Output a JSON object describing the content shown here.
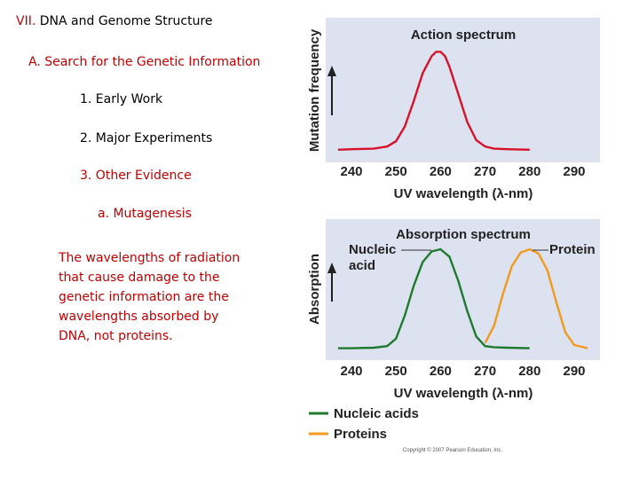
{
  "slide": {
    "heading_num": "VII.",
    "heading_text": "DNA and Genome Structure",
    "section_a": "A. Search for the Genetic Information",
    "item_1": "1. Early Work",
    "item_2": "2. Major Experiments",
    "item_3": "3. Other Evidence",
    "subitem_a": "a. Mutagenesis",
    "paragraph_lines": [
      "The wavelengths of radiation",
      "that cause damage to the",
      "genetic information are the",
      "wavelengths absorbed by",
      "DNA, not proteins."
    ],
    "credit": "Copyright © 2007 Pearson Education, Inc."
  },
  "colors": {
    "red_text": "#c00000",
    "panel_bg": "#dde2f1",
    "action_line": "#d8112b",
    "nucleic_line": "#1f7a2e",
    "protein_line": "#f29a1e"
  },
  "chart_data": [
    {
      "type": "line",
      "title": "Action spectrum",
      "xlabel": "UV wavelength (λ-nm)",
      "ylabel": "Mutation frequency",
      "xlim": [
        235,
        293
      ],
      "ylim": [
        0,
        1.0
      ],
      "xticks": [
        "240",
        "250",
        "260",
        "270",
        "280",
        "290"
      ],
      "grid": false,
      "series": [
        {
          "x": [
            237,
            240,
            245,
            248,
            250,
            252,
            254,
            256,
            258,
            259,
            260,
            261,
            262,
            264,
            266,
            268,
            270,
            272,
            275,
            280
          ],
          "values": [
            0.06,
            0.065,
            0.07,
            0.09,
            0.14,
            0.28,
            0.52,
            0.78,
            0.94,
            0.98,
            0.98,
            0.94,
            0.84,
            0.58,
            0.32,
            0.15,
            0.09,
            0.07,
            0.065,
            0.06
          ]
        }
      ]
    },
    {
      "type": "line",
      "title": "Absorption spectrum",
      "xlabel": "UV wavelength (λ-nm)",
      "ylabel": "Absorption",
      "xlim": [
        235,
        293
      ],
      "ylim": [
        0,
        1.0
      ],
      "xticks": [
        "240",
        "250",
        "260",
        "270",
        "280",
        "290"
      ],
      "grid": false,
      "annotations": [
        "Nucleic acid",
        "Protein"
      ],
      "legend": "bottom",
      "series": [
        {
          "name": "Nucleic acids",
          "x": [
            237,
            240,
            245,
            248,
            250,
            252,
            254,
            256,
            258,
            260,
            262,
            264,
            266,
            268,
            270,
            272,
            275,
            280
          ],
          "values": [
            0.07,
            0.07,
            0.075,
            0.09,
            0.16,
            0.38,
            0.66,
            0.88,
            0.98,
            1.0,
            0.93,
            0.7,
            0.42,
            0.18,
            0.09,
            0.08,
            0.075,
            0.07
          ]
        },
        {
          "name": "Proteins",
          "x": [
            270,
            272,
            274,
            276,
            278,
            280,
            282,
            284,
            286,
            288,
            290,
            293
          ],
          "values": [
            0.12,
            0.28,
            0.58,
            0.84,
            0.97,
            1.0,
            0.96,
            0.8,
            0.5,
            0.22,
            0.1,
            0.07
          ]
        }
      ]
    }
  ]
}
